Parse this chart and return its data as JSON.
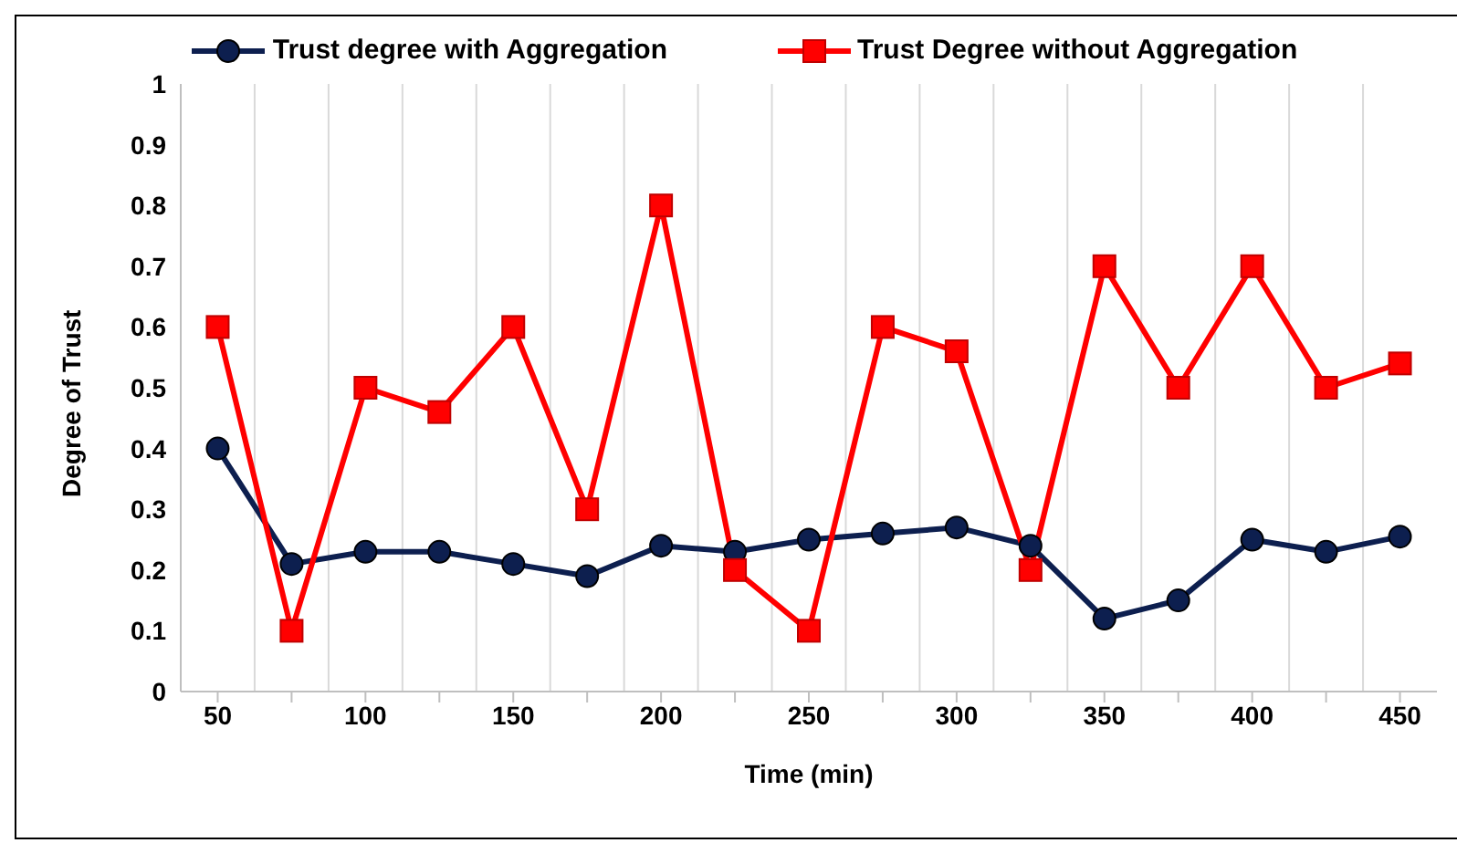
{
  "chart_data": {
    "type": "line",
    "xlabel": "Time (min)",
    "ylabel": "Degree of Trust",
    "categories": [
      "50",
      null,
      "100",
      null,
      "150",
      null,
      "200",
      null,
      "250",
      null,
      "300",
      null,
      "350",
      null,
      "400",
      null,
      "450"
    ],
    "series": [
      {
        "name": "Trust degree with Aggregation",
        "color": "#0d1f4f",
        "marker": "circle",
        "values": [
          0.4,
          0.21,
          0.23,
          0.23,
          0.21,
          0.19,
          0.24,
          0.23,
          0.25,
          0.26,
          0.27,
          0.24,
          0.12,
          0.15,
          0.25,
          0.23,
          0.255
        ]
      },
      {
        "name": "Trust Degree without Aggregation",
        "color": "#ff0000",
        "marker": "square",
        "values": [
          0.6,
          0.1,
          0.5,
          0.46,
          0.6,
          0.3,
          0.8,
          0.2,
          0.1,
          0.6,
          0.56,
          0.2,
          0.7,
          0.5,
          0.7,
          0.5,
          0.54
        ]
      }
    ],
    "ylim": [
      0,
      1
    ],
    "yticks": [
      0,
      0.1,
      0.2,
      0.3,
      0.4,
      0.5,
      0.6,
      0.7,
      0.8,
      0.9,
      1
    ],
    "grid": "x",
    "legend": "top"
  }
}
